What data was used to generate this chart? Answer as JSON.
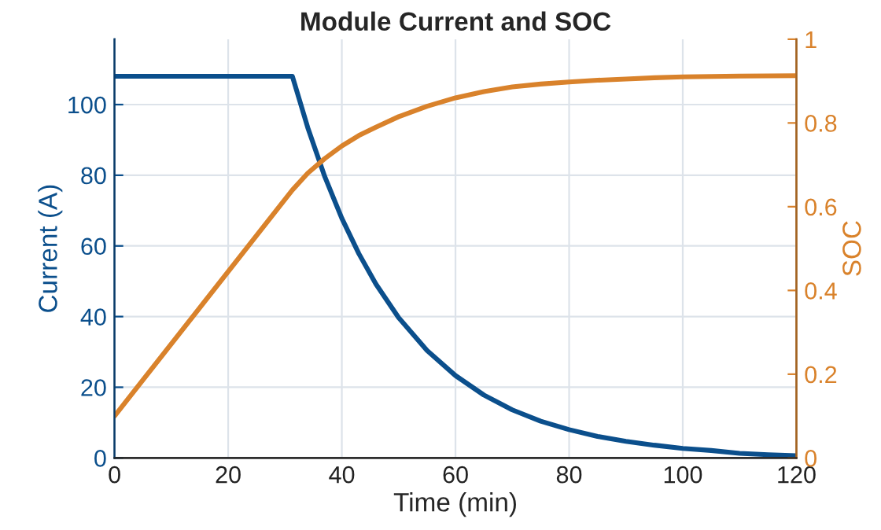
{
  "chart_data": {
    "type": "line",
    "title": "Module Current and SOC",
    "xlabel": "Time (min)",
    "ylabel": "Current (A)",
    "y2label": "SOC",
    "xlim": [
      0,
      120
    ],
    "xticks": [
      0,
      20,
      40,
      60,
      80,
      100,
      120
    ],
    "ylim": [
      0,
      118.5
    ],
    "yticks": [
      0,
      20,
      40,
      60,
      80,
      100
    ],
    "y2lim": [
      0,
      1
    ],
    "y2ticks": [
      0,
      0.2,
      0.4,
      0.6,
      0.8,
      1
    ],
    "grid": true,
    "legend": false,
    "marker": "none",
    "line_style": "solid",
    "series": [
      {
        "color": "#0b4f8c",
        "x": [
          0,
          31.3,
          34,
          37,
          40,
          43,
          46,
          50,
          55,
          60,
          65,
          70,
          75,
          80,
          85,
          90,
          95,
          100,
          105,
          110,
          115,
          120
        ],
        "values": [
          108,
          108,
          93.5,
          79.6,
          67.8,
          57.8,
          49.2,
          39.7,
          30.4,
          23.3,
          17.8,
          13.6,
          10.4,
          8.0,
          6.1,
          4.7,
          3.6,
          2.7,
          2.1,
          1.3,
          0.9,
          0.6
        ]
      },
      {
        "color": "#d9822b",
        "axis": "y2",
        "x": [
          0,
          31.3,
          34,
          37,
          40,
          43,
          46,
          50,
          55,
          60,
          65,
          70,
          75,
          80,
          85,
          90,
          95,
          100,
          110,
          120
        ],
        "values": [
          0.1,
          0.64,
          0.68,
          0.715,
          0.745,
          0.77,
          0.79,
          0.815,
          0.84,
          0.86,
          0.875,
          0.886,
          0.893,
          0.898,
          0.902,
          0.905,
          0.908,
          0.91,
          0.912,
          0.913
        ]
      }
    ]
  }
}
